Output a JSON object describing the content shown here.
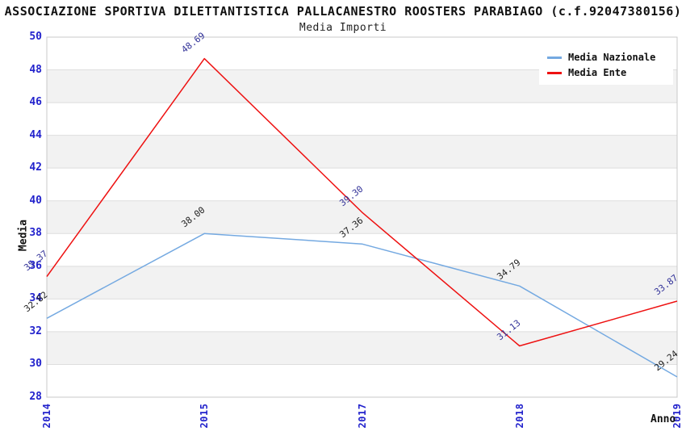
{
  "header": {
    "title": "ASSOCIAZIONE SPORTIVA DILETTANTISTICA PALLACANESTRO ROOSTERS PARABIAGO (c.f.92047380156)",
    "subtitle": "Media Importi"
  },
  "legend": {
    "items": [
      {
        "label": "Media Nazionale",
        "color": "#74a9e1"
      },
      {
        "label": "Media Ente",
        "color": "#ee1111"
      }
    ]
  },
  "axes": {
    "y_label": "Media",
    "x_label": "Anno",
    "y_ticks": [
      28,
      30,
      32,
      34,
      36,
      38,
      40,
      42,
      44,
      46,
      48,
      50
    ],
    "x_ticks": [
      "2014",
      "2015",
      "2017",
      "2018",
      "2019"
    ],
    "tick_color": "#2222cc"
  },
  "colors": {
    "band": "#f2f2f2",
    "gridline": "#dedede",
    "frame": "#c8c8c8",
    "background": "#ffffff"
  },
  "chart_data": {
    "type": "line",
    "title": "ASSOCIAZIONE SPORTIVA DILETTANTISTICA PALLACANESTRO ROOSTERS PARABIAGO (c.f.92047380156)",
    "subtitle": "Media Importi",
    "categories": [
      "2014",
      "2015",
      "2017",
      "2018",
      "2019"
    ],
    "series": [
      {
        "name": "Media Nazionale",
        "color": "#74a9e1",
        "label_color": "#222222",
        "values": [
          32.82,
          38.0,
          37.36,
          34.79,
          29.24
        ]
      },
      {
        "name": "Media Ente",
        "color": "#ee1111",
        "label_color": "#333399",
        "values": [
          35.37,
          48.69,
          39.3,
          31.13,
          33.87
        ]
      }
    ],
    "xlabel": "Anno",
    "ylabel": "Media",
    "ylim": [
      28,
      50
    ],
    "y_tick_step": 2,
    "grid": "horizontal-only",
    "band_fill": "alternating-light-gray",
    "legend_position": "top-right",
    "markers": "none",
    "point_label_format": "2-decimals",
    "x_tick_rotation": -90
  }
}
